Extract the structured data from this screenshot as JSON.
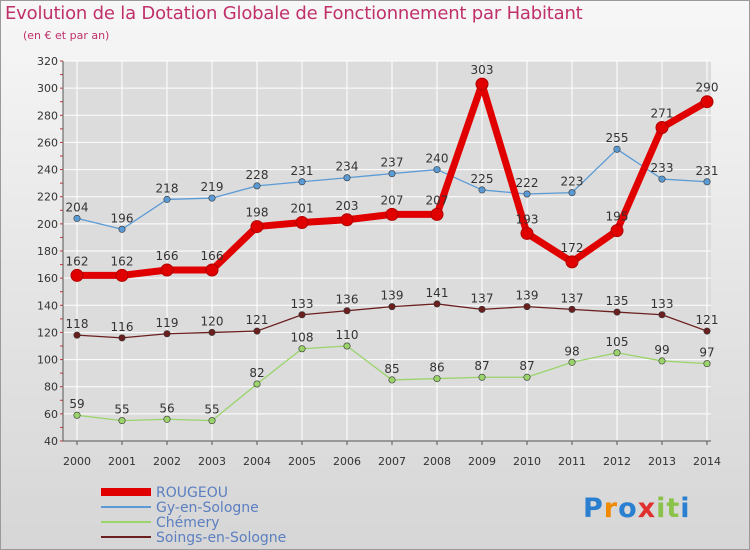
{
  "chart_data": {
    "type": "line",
    "title": "Evolution de la Dotation Globale de Fonctionnement par Habitant",
    "subtitle": "(en € et par an)",
    "xlabel": "",
    "ylabel": "",
    "categories": [
      "2000",
      "2001",
      "2002",
      "2003",
      "2004",
      "2005",
      "2006",
      "2007",
      "2008",
      "2009",
      "2010",
      "2011",
      "2012",
      "2013",
      "2014"
    ],
    "ylim": [
      40,
      320
    ],
    "yticks": [
      40,
      60,
      80,
      100,
      120,
      140,
      160,
      180,
      200,
      220,
      240,
      260,
      280,
      300,
      320
    ],
    "grid": true,
    "legend": "bottom-left",
    "series": [
      {
        "name": "ROUGEOU",
        "color": "#e00000",
        "values": [
          162,
          162,
          166,
          166,
          198,
          201,
          203,
          207,
          207,
          303,
          193,
          172,
          195,
          271,
          290
        ]
      },
      {
        "name": "Gy-en-Sologne",
        "color": "#5b9bd5",
        "values": [
          204,
          196,
          218,
          219,
          228,
          231,
          234,
          237,
          240,
          225,
          222,
          223,
          255,
          233,
          231
        ]
      },
      {
        "name": "Chémery",
        "color": "#9ad46a",
        "values": [
          59,
          55,
          56,
          55,
          82,
          108,
          110,
          85,
          86,
          87,
          87,
          98,
          105,
          99,
          97
        ]
      },
      {
        "name": "Soings-en-Sologne",
        "color": "#6b1f1f",
        "values": [
          118,
          116,
          119,
          120,
          121,
          133,
          136,
          139,
          141,
          137,
          139,
          137,
          135,
          133,
          121
        ]
      }
    ]
  },
  "logo": {
    "text": "Proxiti",
    "letters": [
      "P",
      "r",
      "o",
      "x",
      "i",
      "t",
      "i"
    ],
    "colors": [
      "#2a7fd0",
      "#f08a00",
      "#2a7fd0",
      "#e03030",
      "#8bc34a",
      "#8bc34a",
      "#2a7fd0"
    ]
  },
  "colors": {
    "title": "#c0306a",
    "axis": "#333333",
    "grid": "#ffffff"
  }
}
